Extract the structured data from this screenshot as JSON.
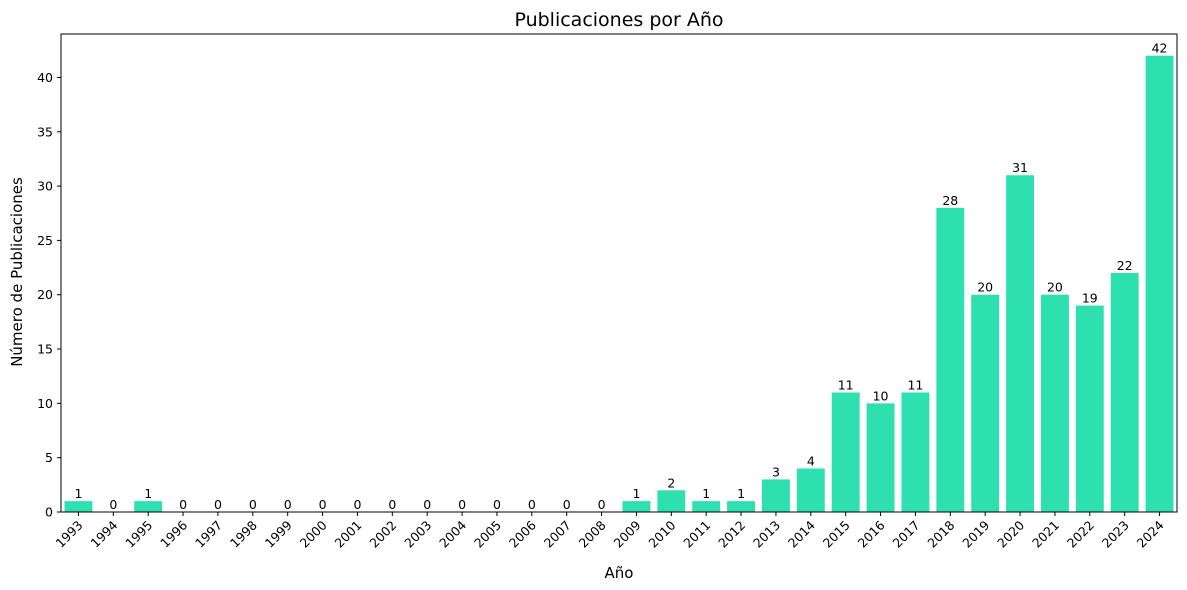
{
  "chart_data": {
    "type": "bar",
    "title": "Publicaciones por Año",
    "xlabel": "Año",
    "ylabel": "Número de Publicaciones",
    "categories": [
      "1993",
      "1994",
      "1995",
      "1996",
      "1997",
      "1998",
      "1999",
      "2000",
      "2001",
      "2002",
      "2003",
      "2004",
      "2005",
      "2006",
      "2007",
      "2008",
      "2009",
      "2010",
      "2011",
      "2012",
      "2013",
      "2014",
      "2015",
      "2016",
      "2017",
      "2018",
      "2019",
      "2020",
      "2021",
      "2022",
      "2023",
      "2024"
    ],
    "values": [
      1,
      0,
      1,
      0,
      0,
      0,
      0,
      0,
      0,
      0,
      0,
      0,
      0,
      0,
      0,
      0,
      1,
      2,
      1,
      1,
      3,
      4,
      11,
      10,
      11,
      28,
      20,
      31,
      20,
      19,
      22,
      42
    ],
    "ylim": [
      0,
      44
    ],
    "yticks": [
      0,
      5,
      10,
      15,
      20,
      25,
      30,
      35,
      40
    ],
    "bar_color": "#2EE0B0",
    "grid": false,
    "legend": "none"
  }
}
